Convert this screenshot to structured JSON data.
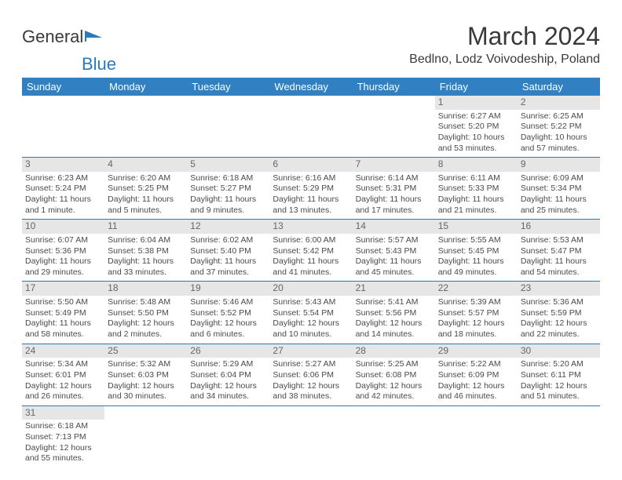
{
  "logo": {
    "text1": "General",
    "text2": "Blue"
  },
  "title": "March 2024",
  "location": "Bedlno, Lodz Voivodeship, Poland",
  "colors": {
    "header_bg": "#3080c2",
    "header_fg": "#ffffff",
    "border": "#2a7ab9",
    "daynum_bg": "#e6e6e6"
  },
  "weekdays": [
    "Sunday",
    "Monday",
    "Tuesday",
    "Wednesday",
    "Thursday",
    "Friday",
    "Saturday"
  ],
  "first_weekday_index": 5,
  "days": [
    {
      "n": 1,
      "sr": "6:27 AM",
      "ss": "5:20 PM",
      "dl": "10 hours and 53 minutes."
    },
    {
      "n": 2,
      "sr": "6:25 AM",
      "ss": "5:22 PM",
      "dl": "10 hours and 57 minutes."
    },
    {
      "n": 3,
      "sr": "6:23 AM",
      "ss": "5:24 PM",
      "dl": "11 hours and 1 minute."
    },
    {
      "n": 4,
      "sr": "6:20 AM",
      "ss": "5:25 PM",
      "dl": "11 hours and 5 minutes."
    },
    {
      "n": 5,
      "sr": "6:18 AM",
      "ss": "5:27 PM",
      "dl": "11 hours and 9 minutes."
    },
    {
      "n": 6,
      "sr": "6:16 AM",
      "ss": "5:29 PM",
      "dl": "11 hours and 13 minutes."
    },
    {
      "n": 7,
      "sr": "6:14 AM",
      "ss": "5:31 PM",
      "dl": "11 hours and 17 minutes."
    },
    {
      "n": 8,
      "sr": "6:11 AM",
      "ss": "5:33 PM",
      "dl": "11 hours and 21 minutes."
    },
    {
      "n": 9,
      "sr": "6:09 AM",
      "ss": "5:34 PM",
      "dl": "11 hours and 25 minutes."
    },
    {
      "n": 10,
      "sr": "6:07 AM",
      "ss": "5:36 PM",
      "dl": "11 hours and 29 minutes."
    },
    {
      "n": 11,
      "sr": "6:04 AM",
      "ss": "5:38 PM",
      "dl": "11 hours and 33 minutes."
    },
    {
      "n": 12,
      "sr": "6:02 AM",
      "ss": "5:40 PM",
      "dl": "11 hours and 37 minutes."
    },
    {
      "n": 13,
      "sr": "6:00 AM",
      "ss": "5:42 PM",
      "dl": "11 hours and 41 minutes."
    },
    {
      "n": 14,
      "sr": "5:57 AM",
      "ss": "5:43 PM",
      "dl": "11 hours and 45 minutes."
    },
    {
      "n": 15,
      "sr": "5:55 AM",
      "ss": "5:45 PM",
      "dl": "11 hours and 49 minutes."
    },
    {
      "n": 16,
      "sr": "5:53 AM",
      "ss": "5:47 PM",
      "dl": "11 hours and 54 minutes."
    },
    {
      "n": 17,
      "sr": "5:50 AM",
      "ss": "5:49 PM",
      "dl": "11 hours and 58 minutes."
    },
    {
      "n": 18,
      "sr": "5:48 AM",
      "ss": "5:50 PM",
      "dl": "12 hours and 2 minutes."
    },
    {
      "n": 19,
      "sr": "5:46 AM",
      "ss": "5:52 PM",
      "dl": "12 hours and 6 minutes."
    },
    {
      "n": 20,
      "sr": "5:43 AM",
      "ss": "5:54 PM",
      "dl": "12 hours and 10 minutes."
    },
    {
      "n": 21,
      "sr": "5:41 AM",
      "ss": "5:56 PM",
      "dl": "12 hours and 14 minutes."
    },
    {
      "n": 22,
      "sr": "5:39 AM",
      "ss": "5:57 PM",
      "dl": "12 hours and 18 minutes."
    },
    {
      "n": 23,
      "sr": "5:36 AM",
      "ss": "5:59 PM",
      "dl": "12 hours and 22 minutes."
    },
    {
      "n": 24,
      "sr": "5:34 AM",
      "ss": "6:01 PM",
      "dl": "12 hours and 26 minutes."
    },
    {
      "n": 25,
      "sr": "5:32 AM",
      "ss": "6:03 PM",
      "dl": "12 hours and 30 minutes."
    },
    {
      "n": 26,
      "sr": "5:29 AM",
      "ss": "6:04 PM",
      "dl": "12 hours and 34 minutes."
    },
    {
      "n": 27,
      "sr": "5:27 AM",
      "ss": "6:06 PM",
      "dl": "12 hours and 38 minutes."
    },
    {
      "n": 28,
      "sr": "5:25 AM",
      "ss": "6:08 PM",
      "dl": "12 hours and 42 minutes."
    },
    {
      "n": 29,
      "sr": "5:22 AM",
      "ss": "6:09 PM",
      "dl": "12 hours and 46 minutes."
    },
    {
      "n": 30,
      "sr": "5:20 AM",
      "ss": "6:11 PM",
      "dl": "12 hours and 51 minutes."
    },
    {
      "n": 31,
      "sr": "6:18 AM",
      "ss": "7:13 PM",
      "dl": "12 hours and 55 minutes."
    }
  ],
  "labels": {
    "sunrise": "Sunrise:",
    "sunset": "Sunset:",
    "daylight": "Daylight:"
  }
}
